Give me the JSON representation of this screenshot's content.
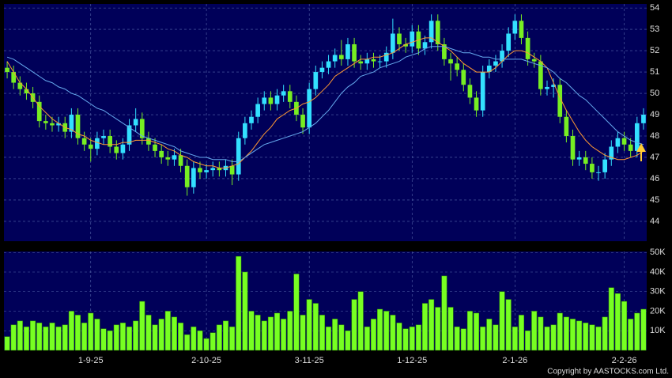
{
  "chart_data": [
    {
      "type": "candlestick",
      "up_color": "#33e0ff",
      "down_color": "#77ee22",
      "open": [
        51.2,
        51.0,
        50.5,
        50.2,
        50.0,
        49.6,
        48.7,
        48.6,
        48.5,
        48.6,
        48.2,
        49.0,
        47.9,
        47.6,
        47.4,
        47.9,
        48.0,
        47.5,
        47.2,
        47.6,
        48.5,
        48.8,
        47.9,
        47.6,
        47.3,
        47.0,
        46.9,
        47.1,
        46.6,
        45.6,
        46.5,
        46.3,
        46.4,
        46.5,
        46.4,
        46.6,
        46.2,
        47.9,
        48.6,
        48.9,
        49.5,
        49.8,
        49.5,
        49.9,
        50.1,
        49.6,
        49.0,
        48.4,
        50.2,
        51.0,
        51.2,
        51.5,
        51.8,
        51.6,
        52.3,
        51.5,
        51.4,
        51.6,
        51.5,
        51.5,
        51.9,
        52.8,
        52.3,
        52.2,
        52.9,
        52.1,
        52.4,
        53.4,
        52.3,
        51.6,
        51.4,
        51.1,
        50.4,
        49.8,
        49.2,
        51.0,
        51.3,
        51.5,
        52.0,
        52.8,
        53.4,
        52.6,
        51.6,
        51.5,
        50.2,
        50.3,
        50.4,
        48.9,
        48.0,
        46.9,
        47.0,
        46.7,
        46.3,
        46.3,
        46.9,
        47.5,
        47.9,
        47.6,
        47.3,
        48.6
      ],
      "high": [
        51.5,
        51.3,
        50.8,
        50.5,
        50.3,
        49.9,
        49.0,
        48.9,
        48.9,
        48.9,
        49.3,
        49.3,
        48.2,
        47.9,
        48.2,
        48.3,
        48.3,
        47.8,
        47.9,
        48.8,
        49.3,
        49.1,
        48.2,
        47.9,
        47.6,
        47.3,
        47.4,
        47.4,
        46.9,
        46.8,
        46.8,
        46.7,
        46.8,
        46.8,
        46.9,
        46.9,
        48.2,
        48.9,
        49.2,
        49.8,
        50.1,
        50.1,
        50.2,
        50.4,
        50.4,
        49.9,
        49.3,
        50.5,
        51.3,
        51.5,
        51.8,
        52.1,
        52.5,
        52.6,
        52.6,
        51.8,
        51.9,
        51.9,
        51.8,
        52.2,
        53.5,
        53.1,
        52.6,
        53.2,
        53.2,
        52.7,
        53.7,
        53.7,
        52.6,
        51.9,
        51.7,
        51.4,
        50.7,
        50.1,
        51.3,
        51.6,
        51.8,
        52.3,
        53.1,
        53.7,
        53.7,
        52.9,
        51.9,
        51.8,
        50.6,
        50.7,
        50.7,
        49.2,
        48.3,
        47.3,
        47.3,
        47.0,
        46.6,
        47.2,
        47.8,
        48.2,
        48.2,
        47.9,
        48.9,
        49.3
      ],
      "low": [
        50.7,
        50.2,
        49.9,
        49.7,
        49.3,
        48.4,
        48.3,
        48.2,
        48.2,
        47.9,
        47.9,
        47.6,
        47.3,
        46.8,
        47.1,
        47.6,
        47.2,
        46.9,
        46.9,
        47.3,
        48.2,
        47.6,
        47.3,
        47.0,
        46.7,
        46.6,
        46.6,
        46.3,
        45.2,
        45.3,
        46.0,
        46.0,
        46.1,
        46.1,
        46.1,
        45.7,
        45.9,
        47.6,
        48.3,
        48.6,
        49.2,
        49.2,
        49.2,
        49.6,
        49.3,
        48.7,
        48.1,
        48.1,
        49.9,
        50.7,
        50.9,
        51.2,
        51.3,
        51.3,
        51.2,
        51.1,
        51.1,
        51.2,
        51.2,
        51.2,
        51.6,
        52.0,
        51.9,
        51.9,
        51.8,
        51.8,
        52.1,
        52.0,
        51.3,
        50.6,
        50.8,
        50.1,
        49.5,
        48.9,
        48.9,
        50.7,
        51.0,
        51.2,
        51.7,
        52.5,
        52.3,
        51.3,
        51.2,
        49.9,
        49.9,
        49.8,
        48.6,
        47.7,
        46.6,
        46.6,
        46.4,
        46.0,
        45.9,
        46.0,
        46.6,
        47.2,
        47.3,
        47.0,
        47.0,
        48.3
      ],
      "close": [
        51.0,
        50.5,
        50.2,
        50.0,
        49.6,
        48.7,
        48.6,
        48.5,
        48.6,
        48.2,
        49.0,
        47.9,
        47.6,
        47.4,
        47.9,
        48.0,
        47.5,
        47.2,
        47.6,
        48.5,
        48.8,
        47.9,
        47.6,
        47.3,
        47.0,
        46.9,
        47.1,
        46.6,
        45.6,
        46.5,
        46.3,
        46.4,
        46.5,
        46.4,
        46.6,
        46.2,
        47.9,
        48.6,
        48.9,
        49.5,
        49.8,
        49.5,
        49.9,
        50.1,
        49.6,
        49.0,
        48.4,
        50.2,
        51.0,
        51.2,
        51.5,
        51.8,
        51.6,
        52.3,
        51.5,
        51.4,
        51.6,
        51.5,
        51.5,
        51.9,
        52.8,
        52.3,
        52.2,
        52.9,
        52.1,
        52.4,
        53.4,
        52.3,
        51.6,
        51.4,
        51.1,
        50.4,
        49.8,
        49.2,
        51.0,
        51.3,
        51.5,
        52.0,
        52.8,
        53.4,
        52.6,
        51.6,
        51.5,
        50.2,
        50.3,
        50.4,
        48.9,
        48.0,
        46.9,
        47.0,
        46.7,
        46.3,
        46.3,
        46.9,
        47.5,
        47.9,
        47.6,
        47.3,
        48.6,
        49.0
      ],
      "lines": [
        {
          "color": "#ff9933",
          "values": [
            51.5,
            51.0,
            50.5,
            50.2,
            49.8,
            49.4,
            49.1,
            48.8,
            48.6,
            48.4,
            48.3,
            48.1,
            48.0,
            47.8,
            47.7,
            47.6,
            47.6,
            47.6,
            47.7,
            47.7,
            47.8,
            47.8,
            47.8,
            47.7,
            47.6,
            47.4,
            47.3,
            47.1,
            47.0,
            46.8,
            46.7,
            46.6,
            46.6,
            46.5,
            46.5,
            46.6,
            46.7,
            47.0,
            47.3,
            47.7,
            48.1,
            48.4,
            48.8,
            49.0,
            49.2,
            49.3,
            49.5,
            49.6,
            49.8,
            50.1,
            50.4,
            50.8,
            51.0,
            51.2,
            51.4,
            51.6,
            51.6,
            51.7,
            51.7,
            51.8,
            51.9,
            52.1,
            52.3,
            52.4,
            52.5,
            52.6,
            52.6,
            52.4,
            52.2,
            52.0,
            51.7,
            51.4,
            51.2,
            51.0,
            51.0,
            51.0,
            51.2,
            51.5,
            51.8,
            52.0,
            52.0,
            51.9,
            51.7,
            51.5,
            51.2,
            50.5,
            49.8,
            49.2,
            48.7,
            48.2,
            47.8,
            47.5,
            47.3,
            47.1,
            47.0,
            46.9,
            46.9,
            47.0,
            47.1,
            47.3
          ]
        },
        {
          "color": "#66aaee",
          "values": [
            51.7,
            51.6,
            51.4,
            51.2,
            51.0,
            50.8,
            50.6,
            50.5,
            50.3,
            50.2,
            50.0,
            49.9,
            49.7,
            49.5,
            49.3,
            49.2,
            49.0,
            48.8,
            48.6,
            48.4,
            48.2,
            48.0,
            47.9,
            47.8,
            47.7,
            47.6,
            47.5,
            47.3,
            47.2,
            47.1,
            47.0,
            47.0,
            46.9,
            46.9,
            46.9,
            46.8,
            46.8,
            47.0,
            47.2,
            47.4,
            47.6,
            47.7,
            47.8,
            47.9,
            48.0,
            48.1,
            48.2,
            48.4,
            48.6,
            48.9,
            49.2,
            49.6,
            50.0,
            50.3,
            50.5,
            50.8,
            50.9,
            51.0,
            51.2,
            51.3,
            51.4,
            51.5,
            51.7,
            51.8,
            51.9,
            52.1,
            52.2,
            52.2,
            52.2,
            52.1,
            52.0,
            51.9,
            51.9,
            51.8,
            51.7,
            51.7,
            51.6,
            51.6,
            51.6,
            51.6,
            51.6,
            51.5,
            51.4,
            51.3,
            51.2,
            51.0,
            50.7,
            50.5,
            50.2,
            49.9,
            49.7,
            49.4,
            49.1,
            48.8,
            48.5,
            48.2,
            48.0,
            47.8,
            47.7,
            47.6
          ]
        }
      ],
      "ylim": [
        43.07,
        54.19
      ],
      "yticks": [
        44,
        45,
        46,
        47,
        48,
        49,
        50,
        51,
        52,
        53,
        54
      ],
      "grid": true
    },
    {
      "type": "bar",
      "color": "#77ff22",
      "categories": [
        null,
        null,
        null,
        null,
        null,
        null,
        null,
        null,
        null,
        null,
        null,
        null,
        null,
        "1-9-25",
        null,
        null,
        null,
        null,
        null,
        null,
        null,
        null,
        null,
        null,
        null,
        null,
        null,
        null,
        null,
        null,
        null,
        "2-10-25",
        null,
        null,
        null,
        null,
        null,
        null,
        null,
        null,
        null,
        null,
        null,
        null,
        null,
        null,
        null,
        "3-11-25",
        null,
        null,
        null,
        null,
        null,
        null,
        null,
        null,
        null,
        null,
        null,
        null,
        null,
        null,
        null,
        "1-12-25",
        null,
        null,
        null,
        null,
        null,
        null,
        null,
        null,
        null,
        null,
        null,
        null,
        null,
        null,
        null,
        "2-1-26",
        null,
        null,
        null,
        null,
        null,
        null,
        null,
        null,
        null,
        null,
        null,
        null,
        null,
        null,
        null,
        null,
        "2-2-26",
        null,
        null,
        null
      ],
      "values": [
        7000,
        13000,
        15000,
        12000,
        15000,
        14000,
        12000,
        14000,
        12000,
        13000,
        20000,
        18000,
        14000,
        19000,
        16000,
        11000,
        10000,
        13000,
        14000,
        12000,
        15000,
        25000,
        18000,
        13000,
        16000,
        20000,
        17000,
        14000,
        8000,
        12000,
        10000,
        6000,
        9000,
        13000,
        15000,
        12000,
        48000,
        40000,
        20000,
        18000,
        15000,
        17000,
        19000,
        16000,
        20000,
        39000,
        18000,
        26000,
        24000,
        18000,
        12000,
        16000,
        13000,
        10000,
        26000,
        30000,
        12000,
        16000,
        21000,
        20000,
        18000,
        14000,
        11000,
        12000,
        13000,
        24000,
        26000,
        22000,
        38000,
        22000,
        12000,
        11000,
        20000,
        19000,
        12000,
        16000,
        13000,
        30000,
        26000,
        12000,
        18000,
        10000,
        20000,
        17000,
        12000,
        13000,
        19000,
        17000,
        16000,
        15000,
        14000,
        13000,
        12000,
        17000,
        32000,
        29000,
        25000,
        16000,
        19000,
        21000
      ],
      "ylim": [
        0,
        50500
      ],
      "yticks": [
        {
          "value": 10000,
          "label": "10K"
        },
        {
          "value": 20000,
          "label": "20K"
        },
        {
          "value": 30000,
          "label": "30K"
        },
        {
          "value": 40000,
          "label": "40K"
        },
        {
          "value": 50000,
          "label": "50K"
        }
      ],
      "grid": true
    }
  ],
  "copyright": "Copyright by AASTOCKS.com Ltd."
}
